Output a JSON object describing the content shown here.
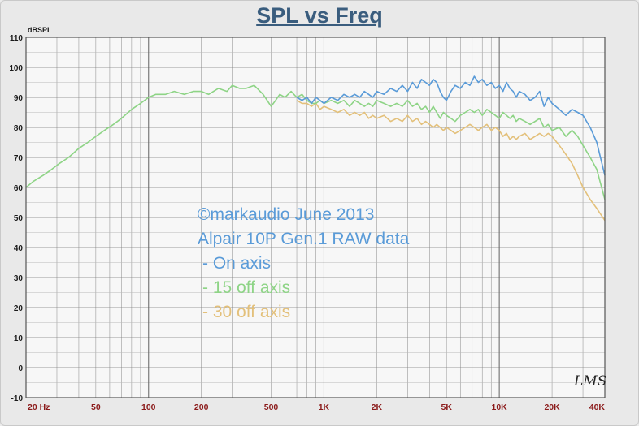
{
  "chart_data": {
    "type": "line",
    "title": "SPL vs Freq",
    "ylabel": "dBSPL",
    "xlabel": "",
    "xscale": "log",
    "xlim": [
      20,
      40000
    ],
    "ylim": [
      -10,
      110
    ],
    "grid": true,
    "y_ticks": [
      110,
      100,
      90,
      80,
      70,
      60,
      50,
      40,
      30,
      20,
      10,
      0,
      -10
    ],
    "x_ticks": [
      {
        "value": 20,
        "label": "20 Hz"
      },
      {
        "value": 50,
        "label": "50"
      },
      {
        "value": 100,
        "label": "100"
      },
      {
        "value": 200,
        "label": "200"
      },
      {
        "value": 500,
        "label": "500"
      },
      {
        "value": 1000,
        "label": "1K"
      },
      {
        "value": 2000,
        "label": "2K"
      },
      {
        "value": 5000,
        "label": "5K"
      },
      {
        "value": 10000,
        "label": "10K"
      },
      {
        "value": 20000,
        "label": "20K"
      },
      {
        "value": 40000,
        "label": "40K"
      }
    ],
    "series": [
      {
        "name": "On axis",
        "color": "#5a9bd8",
        "x": [
          700,
          750,
          800,
          850,
          900,
          950,
          1000,
          1100,
          1200,
          1300,
          1400,
          1500,
          1600,
          1700,
          1800,
          1900,
          2000,
          2200,
          2400,
          2600,
          2800,
          3000,
          3200,
          3400,
          3600,
          3800,
          4000,
          4200,
          4400,
          4600,
          4800,
          5000,
          5300,
          5600,
          6000,
          6400,
          6800,
          7200,
          7600,
          8000,
          8500,
          9000,
          9500,
          10000,
          10500,
          11000,
          11500,
          12000,
          12500,
          13000,
          14000,
          15000,
          16000,
          17000,
          18000,
          19000,
          20000,
          22000,
          24000,
          26000,
          28000,
          30000,
          33000,
          36000,
          40000
        ],
        "y": [
          90,
          89,
          90,
          88,
          90,
          89,
          88,
          90,
          89,
          91,
          90,
          91,
          90,
          92,
          91,
          90,
          92,
          91,
          93,
          92,
          94,
          92,
          95,
          93,
          96,
          95,
          94,
          96,
          95,
          92,
          90,
          89,
          92,
          94,
          93,
          95,
          94,
          97,
          95,
          96,
          94,
          95,
          93,
          94,
          92,
          95,
          93,
          92,
          90,
          92,
          91,
          89,
          90,
          92,
          87,
          90,
          88,
          86,
          84,
          86,
          85,
          84,
          80,
          75,
          64
        ]
      },
      {
        "name": "15 off axis",
        "color": "#8ed486",
        "x": [
          20,
          22,
          25,
          28,
          31,
          35,
          40,
          45,
          50,
          56,
          63,
          70,
          80,
          90,
          100,
          110,
          125,
          140,
          160,
          180,
          200,
          220,
          250,
          280,
          300,
          330,
          360,
          400,
          450,
          500,
          530,
          560,
          600,
          650,
          700,
          750,
          800,
          850,
          900,
          950,
          1000,
          1100,
          1200,
          1300,
          1400,
          1500,
          1600,
          1700,
          1800,
          1900,
          2000,
          2200,
          2400,
          2600,
          2800,
          3000,
          3200,
          3400,
          3600,
          3800,
          4000,
          4200,
          4400,
          4600,
          4800,
          5000,
          5300,
          5600,
          6000,
          6400,
          6800,
          7200,
          7600,
          8000,
          8500,
          9000,
          9500,
          10000,
          10500,
          11000,
          11500,
          12000,
          12500,
          13000,
          14000,
          15000,
          16000,
          17000,
          18000,
          19000,
          20000,
          22000,
          24000,
          26000,
          28000,
          30000,
          33000,
          36000,
          40000
        ],
        "y": [
          60,
          62,
          64,
          66,
          68,
          70,
          73,
          75,
          77,
          79,
          81,
          83,
          86,
          88,
          90,
          91,
          91,
          92,
          91,
          92,
          92,
          91,
          93,
          92,
          94,
          93,
          93,
          94,
          91,
          87,
          89,
          91,
          90,
          92,
          90,
          91,
          89,
          88,
          88,
          89,
          88,
          89,
          88,
          89,
          87,
          89,
          88,
          87,
          88,
          87,
          89,
          88,
          87,
          88,
          87,
          89,
          87,
          88,
          86,
          87,
          85,
          87,
          85,
          83,
          85,
          84,
          83,
          82,
          84,
          85,
          86,
          85,
          86,
          84,
          86,
          85,
          84,
          83,
          85,
          84,
          83,
          84,
          82,
          83,
          82,
          81,
          82,
          83,
          80,
          81,
          79,
          80,
          77,
          79,
          77,
          74,
          70,
          66,
          56
        ]
      },
      {
        "name": "30 off axis",
        "color": "#e3c07a",
        "x": [
          700,
          750,
          800,
          850,
          900,
          950,
          1000,
          1100,
          1200,
          1300,
          1400,
          1500,
          1600,
          1700,
          1800,
          1900,
          2000,
          2200,
          2400,
          2600,
          2800,
          3000,
          3200,
          3400,
          3600,
          3800,
          4000,
          4200,
          4400,
          4600,
          4800,
          5000,
          5300,
          5600,
          6000,
          6400,
          6800,
          7200,
          7600,
          8000,
          8500,
          9000,
          9500,
          10000,
          10500,
          11000,
          11500,
          12000,
          12500,
          13000,
          14000,
          15000,
          16000,
          17000,
          18000,
          19000,
          20000,
          22000,
          24000,
          26000,
          28000,
          30000,
          33000,
          36000,
          40000
        ],
        "y": [
          89,
          88,
          88,
          87,
          88,
          86,
          87,
          86,
          85,
          86,
          84,
          85,
          84,
          85,
          83,
          84,
          83,
          84,
          82,
          83,
          82,
          84,
          82,
          83,
          81,
          82,
          81,
          80,
          81,
          80,
          79,
          80,
          79,
          78,
          79,
          80,
          81,
          80,
          79,
          80,
          81,
          79,
          80,
          79,
          77,
          78,
          76,
          77,
          76,
          77,
          78,
          76,
          77,
          78,
          77,
          78,
          77,
          74,
          71,
          68,
          64,
          60,
          56,
          53,
          49
        ]
      }
    ]
  },
  "annotations": {
    "copyright": "©markaudio June 2013",
    "model": "Alpair 10P Gen.1 RAW data",
    "series_on_axis": "- On axis",
    "series_15": "- 15 off axis",
    "series_30": "- 30 off axis"
  },
  "logo_text": "LMS",
  "colors": {
    "title": "#3a5d7e",
    "tick_labels": "#8b1a1a",
    "grid": "#9a9a9a",
    "plot_bg": "#f7f7f7",
    "on_axis": "#5a9bd8",
    "off15": "#8ed486",
    "off30": "#e3c07a"
  }
}
